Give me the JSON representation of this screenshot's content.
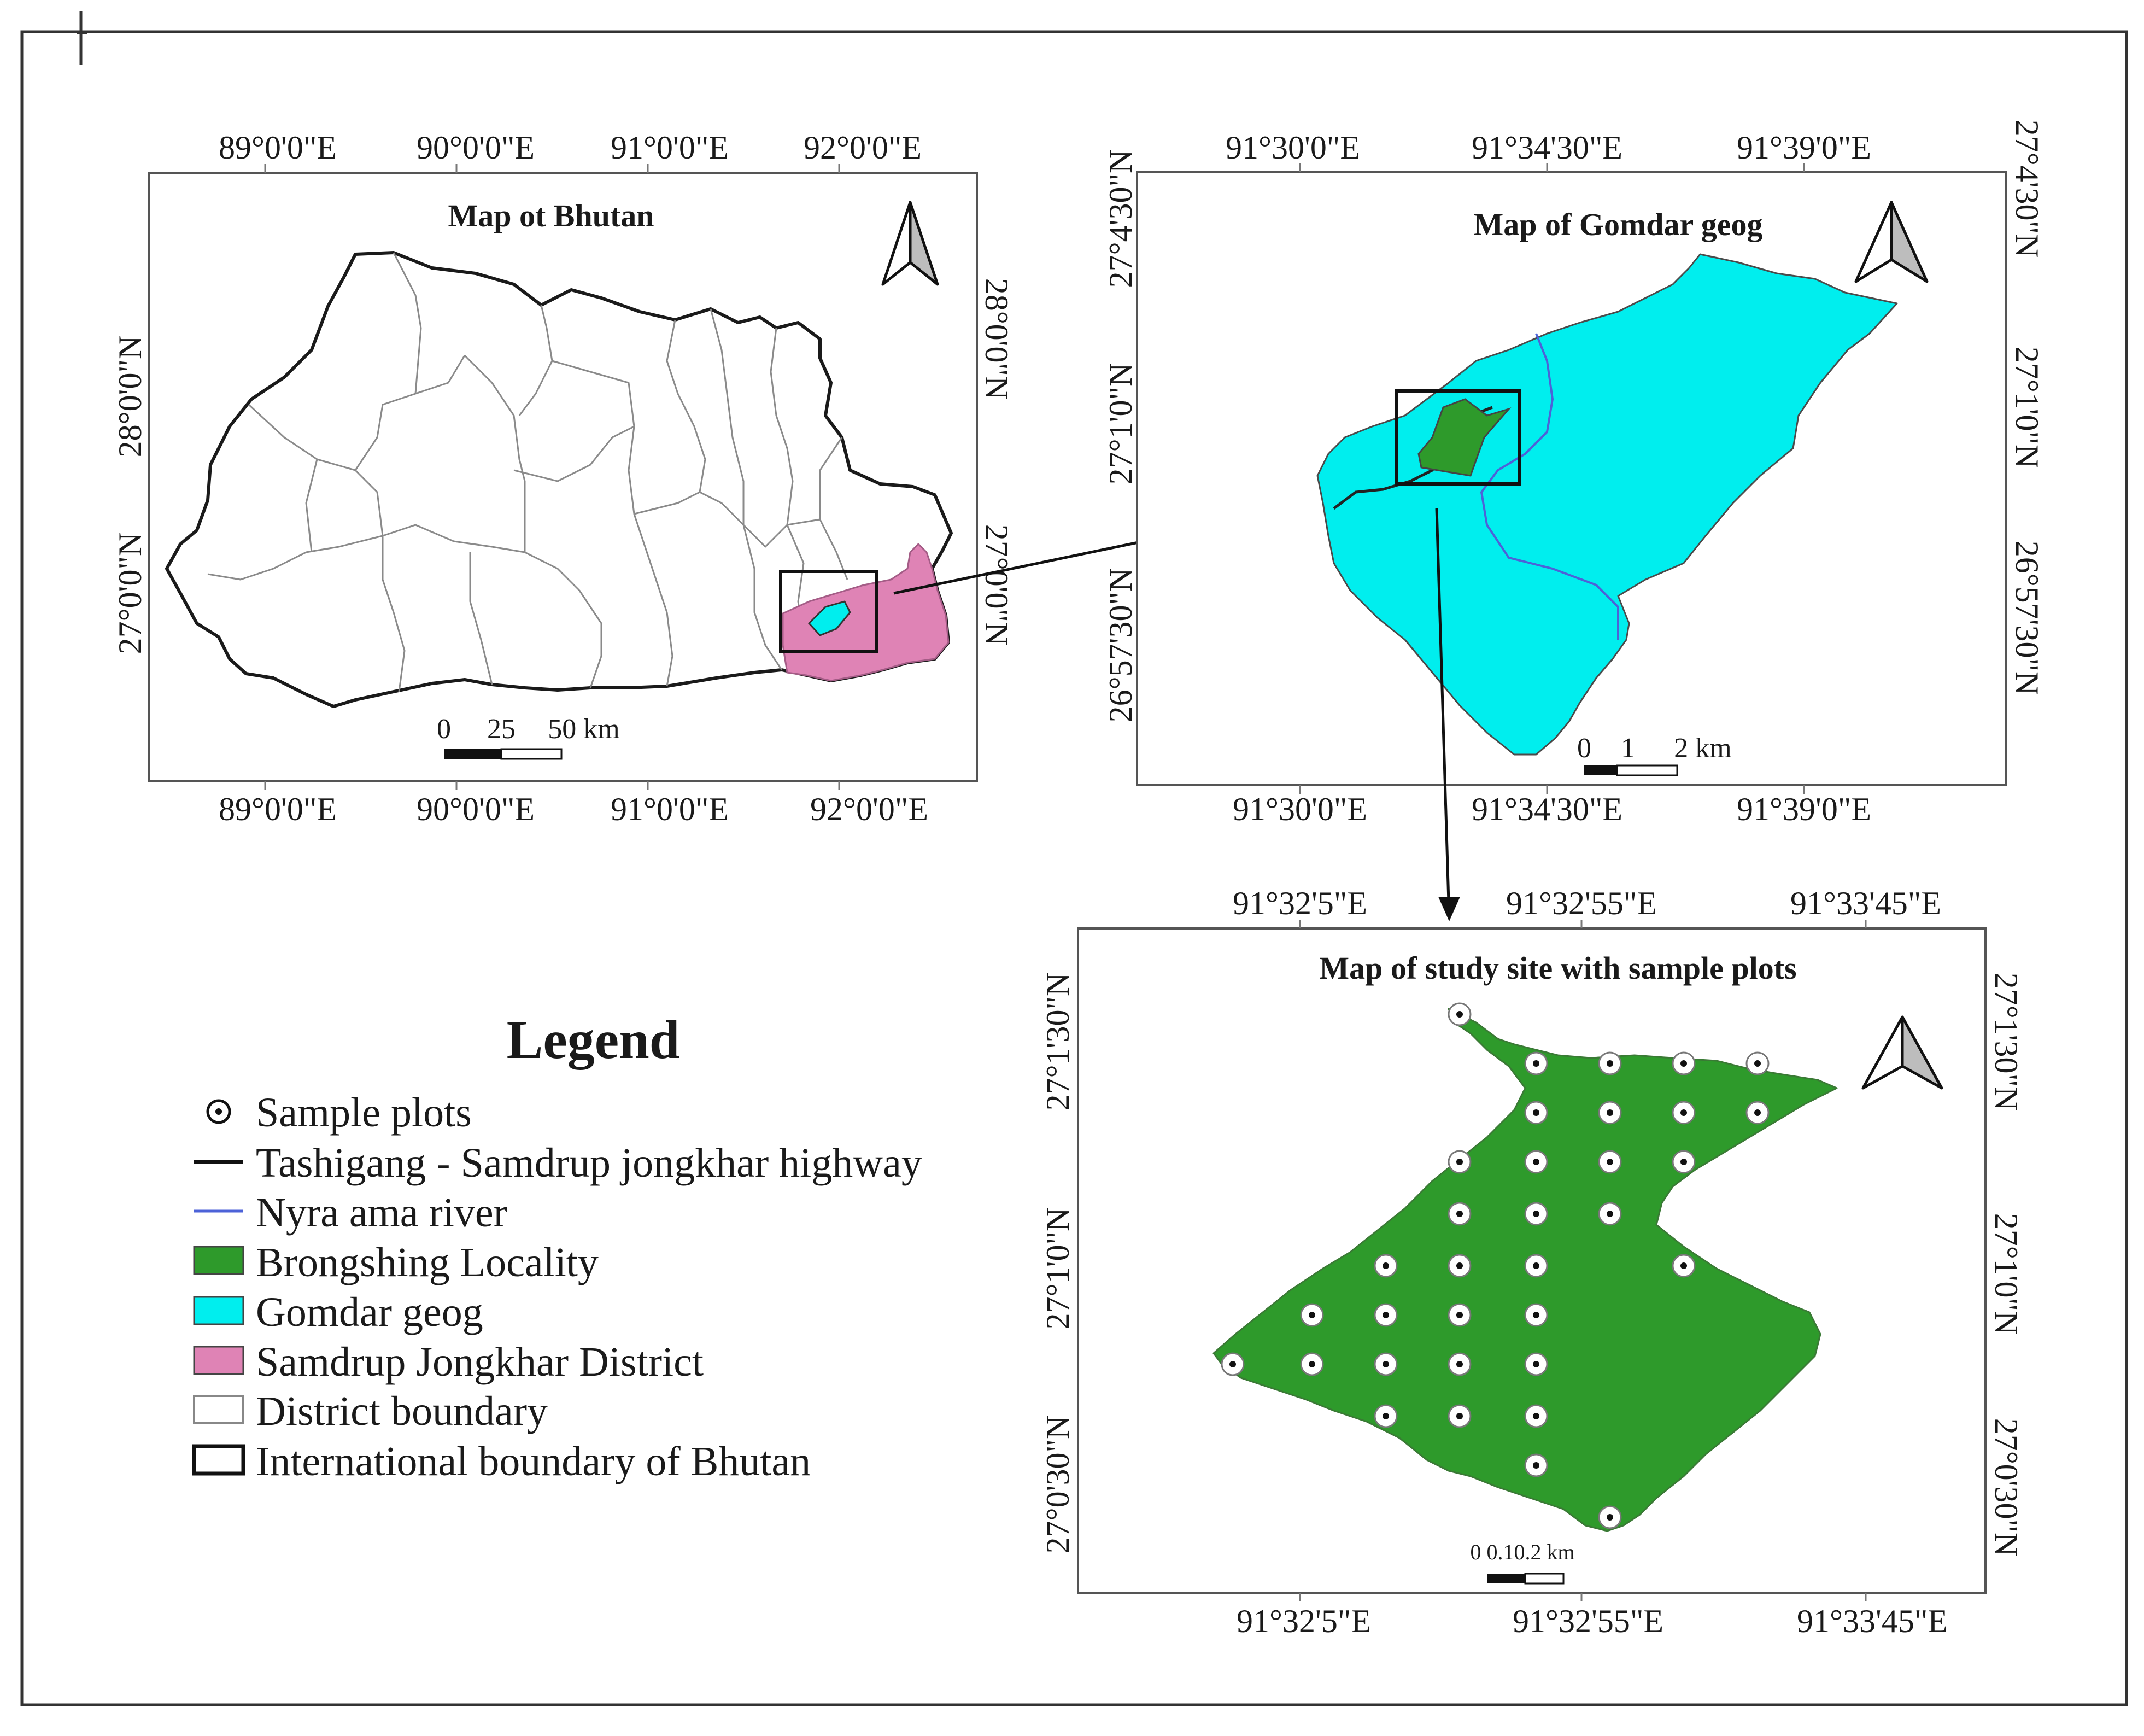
{
  "colors": {
    "brongshing": "#2e9a2b",
    "gomdar": "#00eeee",
    "samdrup": "#df83b5",
    "river": "#4c62d8",
    "frame": "#444444"
  },
  "map_bhutan": {
    "title": "Map ot Bhutan",
    "lon_top": [
      "89°0'0\"E",
      "90°0'0\"E",
      "91°0'0\"E",
      "92°0'0\"E"
    ],
    "lon_bottom": [
      "89°0'0\"E",
      "90°0'0\"E",
      "91°0'0\"E",
      "92°0'0\"E"
    ],
    "lat_left": [
      "28°0'0\"N",
      "27°0'0\"N"
    ],
    "lat_right": [
      "28°0'0\"N",
      "27°0'0\"N"
    ],
    "scale_ticks": [
      "0",
      "25",
      "50 km"
    ],
    "north_arrow_icon": "north-arrow-icon"
  },
  "map_gomdar": {
    "title": "Map of Gomdar geog",
    "lon_top": [
      "91°30'0\"E",
      "91°34'30\"E",
      "91°39'0\"E"
    ],
    "lon_bottom": [
      "91°30'0\"E",
      "91°34'30\"E",
      "91°39'0\"E"
    ],
    "lat_left": [
      "27°4'30\"N",
      "27°1'0\"N",
      "26°57'30\"N"
    ],
    "lat_right": [
      "27°4'30\"N",
      "27°1'0\"N",
      "26°57'30\"N"
    ],
    "scale_ticks": [
      "0",
      "1",
      "2 km"
    ],
    "north_arrow_icon": "north-arrow-icon"
  },
  "map_study": {
    "title": "Map of study site with sample plots",
    "lon_top": [
      "91°32'5\"E",
      "91°32'55\"E",
      "91°33'45\"E"
    ],
    "lon_bottom": [
      "91°32'5\"E",
      "91°32'55\"E",
      "91°33'45\"E"
    ],
    "lat_left": [
      "27°1'30\"N",
      "27°1'0\"N",
      "27°0'30\"N"
    ],
    "lat_right": [
      "27°1'30\"N",
      "27°1'0\"N",
      "27°0'30\"N"
    ],
    "scale_label": "0 0.10.2 km",
    "north_arrow_icon": "north-arrow-icon"
  },
  "legend": {
    "title": "Legend",
    "items": [
      {
        "label": "Sample plots",
        "icon": "sample-plot-icon"
      },
      {
        "label": "Tashigang - Samdrup jongkhar highway",
        "icon": "highway-line-icon"
      },
      {
        "label": "Nyra ama river",
        "icon": "river-line-icon"
      },
      {
        "label": "Brongshing Locality",
        "icon": "brongshing-swatch"
      },
      {
        "label": "Gomdar geog",
        "icon": "gomdar-swatch"
      },
      {
        "label": "Samdrup Jongkhar District",
        "icon": "samdrup-swatch"
      },
      {
        "label": "District boundary",
        "icon": "district-boundary-swatch"
      },
      {
        "label": "International boundary of Bhutan",
        "icon": "international-boundary-swatch"
      }
    ]
  }
}
